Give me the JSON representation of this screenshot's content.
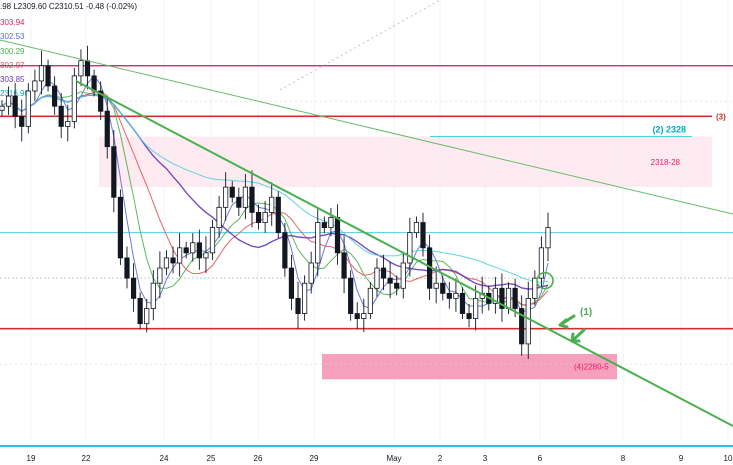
{
  "header": {
    "ohlc_text": ".98  L2309.60  C2310.51  -0.48 (-0.02%)"
  },
  "ma_legend": [
    {
      "text": "303.94",
      "color": "#e91e63"
    },
    {
      "text": "302.53",
      "color": "#5b6cd6"
    },
    {
      "text": "300.29",
      "color": "#4caf50"
    },
    {
      "text": "302.97",
      "color": "#e05757"
    },
    {
      "text": "303.85",
      "color": "#673ab7"
    },
    {
      "text": "2316.96",
      "color": "#00acc1"
    }
  ],
  "chart_data": {
    "type": "candlestick",
    "x_ticks": [
      "19",
      "22",
      "24",
      "25",
      "26",
      "29",
      "May",
      "2",
      "3",
      "6",
      "8",
      "9",
      "10"
    ],
    "ylim": [
      2268,
      2355
    ],
    "annotations": [
      {
        "text": "(1)",
        "color": "#4caf50"
      },
      {
        "text": "(2) 2328",
        "color": "#00acc1"
      },
      {
        "text": "(3)",
        "color": "#d32f2f"
      },
      {
        "text": "2318-28",
        "color": "#e91e63"
      },
      {
        "text": "(4)2280-5",
        "color": "#e91e63"
      }
    ],
    "horizontal_levels": [
      {
        "price": 2342,
        "color": "#d32f2f",
        "kind": "resistance"
      },
      {
        "price": 2332,
        "color": "#d32f2f",
        "kind": "resistance"
      },
      {
        "price": 2290,
        "color": "#d32f2f",
        "kind": "support"
      },
      {
        "price": 2309,
        "color": "#00acc1",
        "kind": "level"
      },
      {
        "price": 2328,
        "color": "#00acc1",
        "kind": "target"
      }
    ],
    "zones": [
      {
        "from": 2318,
        "to": 2328,
        "label": "2318-28"
      },
      {
        "from": 2280,
        "to": 2285,
        "label": "(4)2280-5"
      }
    ],
    "close": [
      2334,
      2336,
      2332,
      2330,
      2337,
      2339,
      2342,
      2338,
      2334,
      2330,
      2331,
      2340,
      2343,
      2340,
      2337,
      2333,
      2326,
      2316,
      2304,
      2300,
      2296,
      2291,
      2294,
      2299,
      2302,
      2304,
      2303,
      2306,
      2305,
      2307,
      2304,
      2305,
      2310,
      2314,
      2318,
      2316,
      2314,
      2318,
      2313,
      2311,
      2313,
      2316,
      2309,
      2302,
      2296,
      2293,
      2299,
      2303,
      2311,
      2310,
      2312,
      2305,
      2300,
      2293,
      2292,
      2293,
      2298,
      2302,
      2300,
      2299,
      2298,
      2303,
      2309,
      2311,
      2306,
      2298,
      2299,
      2297,
      2296,
      2297,
      2293,
      2292,
      2296,
      2297,
      2295,
      2298,
      2294,
      2298,
      2294,
      2287,
      2296,
      2300,
      2306,
      2310
    ]
  }
}
